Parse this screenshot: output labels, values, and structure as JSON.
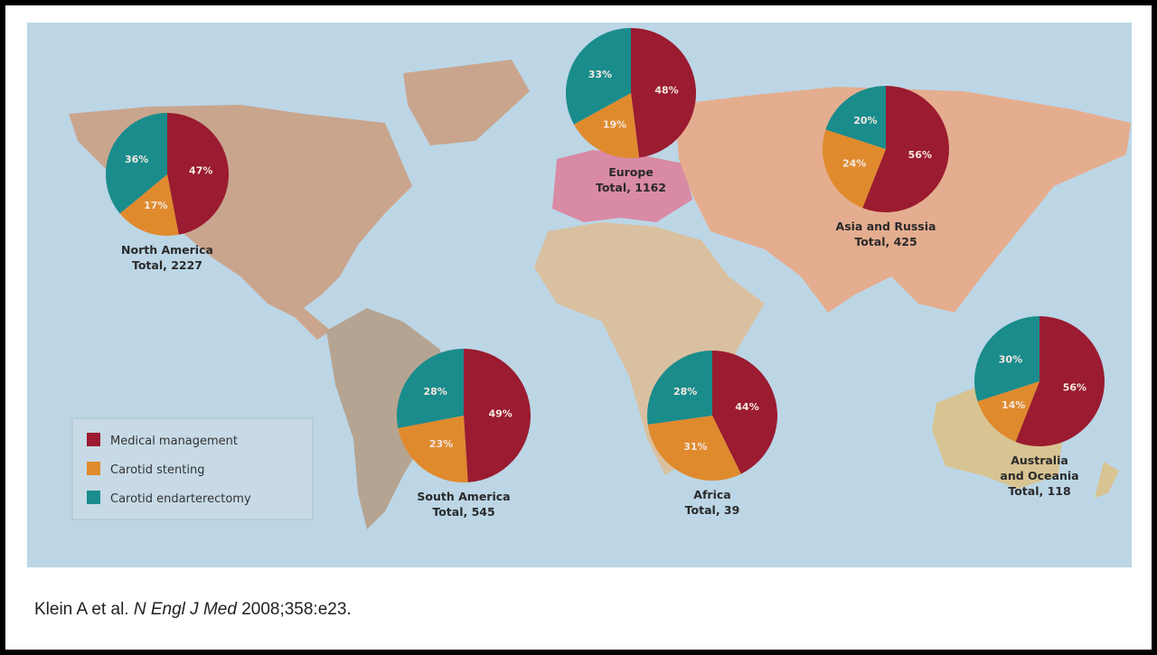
{
  "chart_data": {
    "type": "pie",
    "colors": {
      "Medical management": "#9b1b30",
      "Carotid stenting": "#e08a2e",
      "Carotid endarterectomy": "#1a8c8c"
    },
    "legend": [
      "Medical management",
      "Carotid stenting",
      "Carotid endarterectomy"
    ],
    "legend_placement": "bottom-left",
    "pies": [
      {
        "region": "North America",
        "total_label": "Total, 2227",
        "values": [
          47,
          17,
          36
        ]
      },
      {
        "region": "Europe",
        "total_label": "Total, 1162",
        "values": [
          48,
          19,
          33
        ]
      },
      {
        "region": "Asia and Russia",
        "total_label": "Total, 425",
        "values": [
          56,
          24,
          20
        ]
      },
      {
        "region": "South America",
        "total_label": "Total, 545",
        "values": [
          49,
          23,
          28
        ]
      },
      {
        "region": "Africa",
        "total_label": "Total, 39",
        "values": [
          44,
          31,
          28
        ]
      },
      {
        "region": "Australia and Oceania",
        "total_label": "Total, 118",
        "values": [
          56,
          14,
          30
        ]
      }
    ]
  },
  "caption": {
    "authors": "Klein A et al.",
    "journal": "N Engl J Med",
    "citation": "2008;358:e23."
  }
}
